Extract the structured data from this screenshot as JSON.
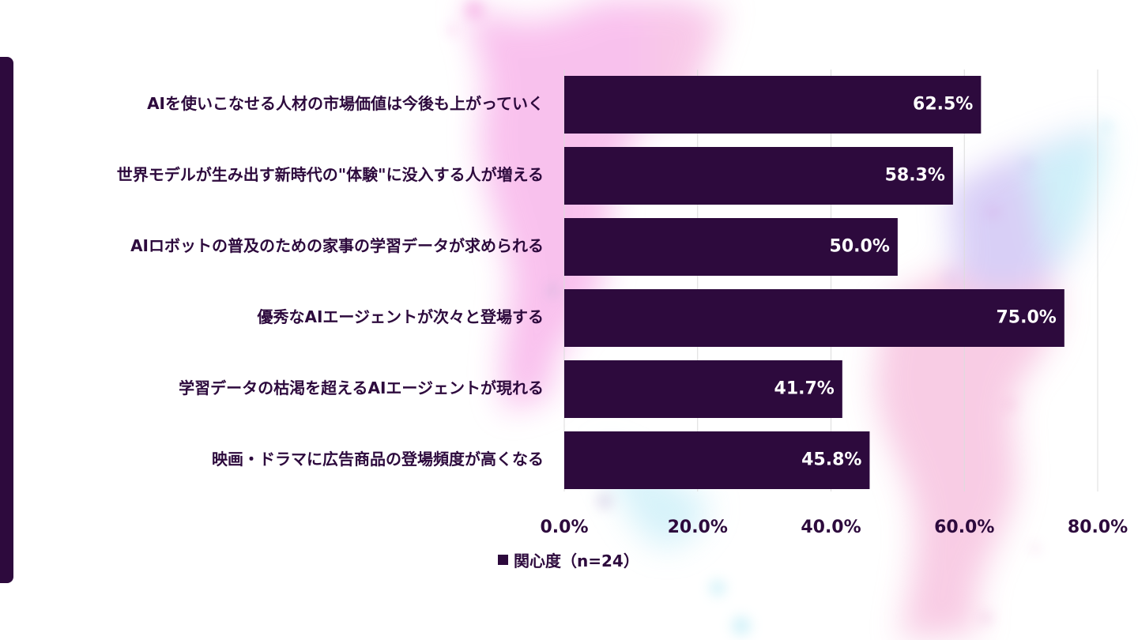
{
  "chart_data": {
    "type": "bar",
    "orientation": "horizontal",
    "categories": [
      "AIを使いこなせる人材の市場価値は今後も上がっていく",
      "世界モデルが生み出す新時代の\"体験\"に没入する人が増える",
      "AIロボットの普及のための家事の学習データが求められる",
      "優秀なAIエージェントが次々と登場する",
      "学習データの枯渇を超えるAIエージェントが現れる",
      "映画・ドラマに広告商品の登場頻度が高くなる"
    ],
    "series": [
      {
        "name": "関心度（n=24）",
        "values": [
          62.5,
          58.3,
          50.0,
          75.0,
          41.7,
          45.8
        ]
      }
    ],
    "data_labels": [
      "62.5%",
      "58.3%",
      "50.0%",
      "75.0%",
      "41.7%",
      "45.8%"
    ],
    "xlim": [
      0,
      80
    ],
    "xticks": [
      0,
      20,
      40,
      60,
      80
    ],
    "xtick_labels": [
      "0.0%",
      "20.0%",
      "40.0%",
      "60.0%",
      "80.0%"
    ],
    "grid": true,
    "legend_position": "bottom",
    "bar_color": "#2d0a3d",
    "label_color": "#ffffff",
    "text_color": "#2d0a3d",
    "grid_color": "#dcdcdc"
  },
  "legend": {
    "label": "関心度（n=24）"
  }
}
